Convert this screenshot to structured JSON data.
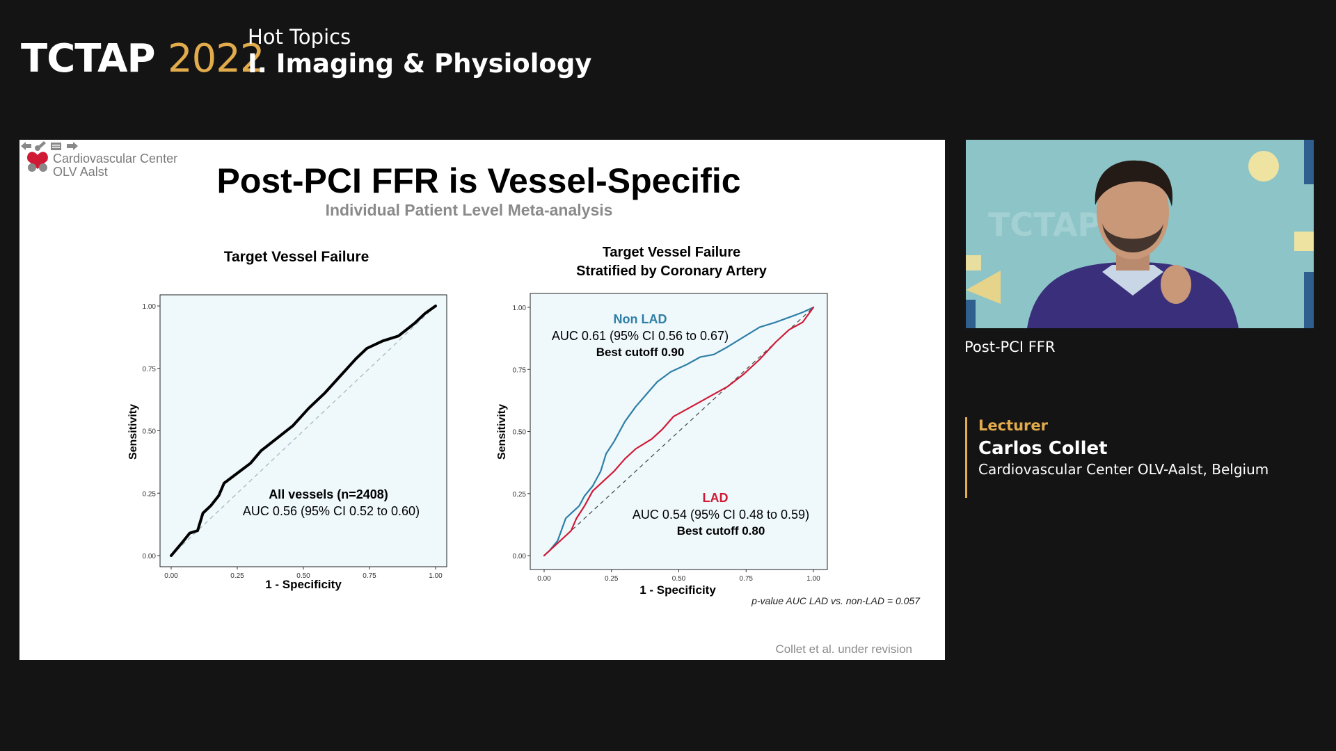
{
  "header": {
    "brand_name": "TCTAP",
    "brand_year": "2022",
    "session_kicker": "Hot Topics",
    "session_title": "I. Imaging & Physiology"
  },
  "slide": {
    "logo_line1": "Cardiovascular Center",
    "logo_line2": "OLV Aalst",
    "title": "Post-PCI FFR is Vessel-Specific",
    "subtitle": "Individual Patient Level Meta-analysis",
    "citation": "Collet et al. under revision",
    "pvalue": "p-value AUC LAD vs. non-LAD = 0.057"
  },
  "chart_data": [
    {
      "type": "line",
      "title": "Target Vessel Failure",
      "xlabel": "1 - Specificity",
      "ylabel": "Sensitivity",
      "xlim": [
        0,
        1
      ],
      "ylim": [
        0,
        1
      ],
      "ticks": [
        "0.00",
        "0.25",
        "0.50",
        "0.75",
        "1.00"
      ],
      "grid": false,
      "diagonal_reference": true,
      "annotations": [
        {
          "text": "All vessels (n=2408)",
          "bold": true
        },
        {
          "text": "AUC 0.56 (95% CI 0.52 to 0.60)",
          "bold": false
        }
      ],
      "series": [
        {
          "color": "#000000",
          "x": [
            0.0,
            0.04,
            0.07,
            0.1,
            0.12,
            0.15,
            0.18,
            0.2,
            0.25,
            0.3,
            0.34,
            0.4,
            0.46,
            0.52,
            0.58,
            0.64,
            0.7,
            0.74,
            0.8,
            0.86,
            0.92,
            0.96,
            1.0
          ],
          "y": [
            0.0,
            0.05,
            0.09,
            0.1,
            0.17,
            0.2,
            0.24,
            0.29,
            0.33,
            0.37,
            0.42,
            0.47,
            0.52,
            0.59,
            0.65,
            0.72,
            0.79,
            0.83,
            0.86,
            0.88,
            0.93,
            0.97,
            1.0
          ]
        }
      ]
    },
    {
      "type": "line",
      "title": "Target Vessel Failure",
      "subtitle": "Stratified by Coronary Artery",
      "xlabel": "1 - Specificity",
      "ylabel": "Sensitivity",
      "xlim": [
        0,
        1
      ],
      "ylim": [
        0,
        1
      ],
      "ticks": [
        "0.00",
        "0.25",
        "0.50",
        "0.75",
        "1.00"
      ],
      "grid": false,
      "diagonal_reference": true,
      "series": [
        {
          "name": "Non LAD",
          "color": "#2e7fa6",
          "label_lines": [
            "AUC 0.61 (95% CI 0.56 to 0.67)",
            "Best cutoff 0.90"
          ],
          "x": [
            0.0,
            0.02,
            0.05,
            0.08,
            0.1,
            0.13,
            0.15,
            0.18,
            0.21,
            0.23,
            0.26,
            0.3,
            0.34,
            0.38,
            0.42,
            0.47,
            0.53,
            0.58,
            0.63,
            0.68,
            0.74,
            0.8,
            0.86,
            0.91,
            0.96,
            1.0
          ],
          "y": [
            0.0,
            0.02,
            0.06,
            0.15,
            0.17,
            0.2,
            0.24,
            0.28,
            0.34,
            0.41,
            0.46,
            0.54,
            0.6,
            0.65,
            0.7,
            0.74,
            0.77,
            0.8,
            0.81,
            0.84,
            0.88,
            0.92,
            0.94,
            0.96,
            0.98,
            1.0
          ]
        },
        {
          "name": "LAD",
          "color": "#d01a35",
          "label_lines": [
            "AUC 0.54 (95% CI 0.48 to 0.59)",
            "Best cutoff 0.80"
          ],
          "x": [
            0.0,
            0.04,
            0.07,
            0.1,
            0.12,
            0.15,
            0.18,
            0.22,
            0.26,
            0.3,
            0.34,
            0.4,
            0.44,
            0.48,
            0.53,
            0.58,
            0.63,
            0.68,
            0.74,
            0.8,
            0.86,
            0.91,
            0.96,
            1.0
          ],
          "y": [
            0.0,
            0.04,
            0.07,
            0.1,
            0.15,
            0.2,
            0.26,
            0.3,
            0.34,
            0.39,
            0.43,
            0.47,
            0.51,
            0.56,
            0.59,
            0.62,
            0.65,
            0.68,
            0.73,
            0.79,
            0.86,
            0.91,
            0.94,
            1.0
          ]
        }
      ]
    }
  ],
  "sidebar": {
    "camera_caption": "Post-PCI FFR",
    "speaker_role": "Lecturer",
    "speaker_name": "Carlos Collet",
    "speaker_affiliation": "Cardiovascular Center OLV-Aalst, Belgium",
    "camera_watermark": "TCTAP"
  },
  "colors": {
    "accent": "#e2ac4c",
    "background": "#141414",
    "plot_bg": "#eff8fb",
    "non_lad": "#2e7fa6",
    "lad": "#d01a35"
  },
  "icons": [
    "prev-slide-icon",
    "pen-icon",
    "notes-icon",
    "next-slide-icon",
    "heart-logo-icon"
  ]
}
